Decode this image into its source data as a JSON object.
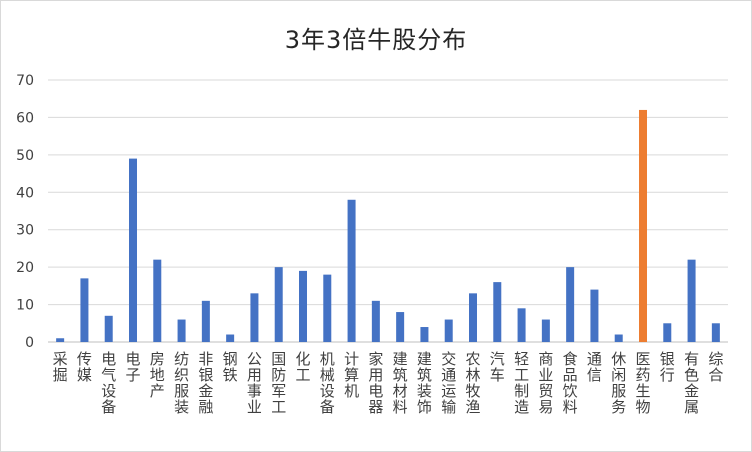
{
  "chart_data": {
    "type": "bar",
    "title": "3年3倍牛股分布",
    "xlabel": "",
    "ylabel": "",
    "ylim": [
      0,
      70
    ],
    "yticks": [
      0,
      10,
      20,
      30,
      40,
      50,
      60,
      70
    ],
    "grid": true,
    "legend": "none",
    "colors": {
      "default": "#4472c4",
      "highlight": "#ed7d31"
    },
    "highlight_category": "医药生物",
    "categories": [
      "采掘",
      "传媒",
      "电气设备",
      "电子",
      "房地产",
      "纺织服装",
      "非银金融",
      "钢铁",
      "公用事业",
      "国防军工",
      "化工",
      "机械设备",
      "计算机",
      "家用电器",
      "建筑材料",
      "建筑装饰",
      "交通运输",
      "农林牧渔",
      "汽车",
      "轻工制造",
      "商业贸易",
      "食品饮料",
      "通信",
      "休闲服务",
      "医药生物",
      "银行",
      "有色金属",
      "综合"
    ],
    "values": [
      1,
      17,
      7,
      49,
      22,
      6,
      11,
      2,
      13,
      20,
      19,
      18,
      38,
      11,
      8,
      4,
      6,
      13,
      16,
      9,
      6,
      20,
      14,
      2,
      62,
      5,
      22,
      5
    ]
  }
}
